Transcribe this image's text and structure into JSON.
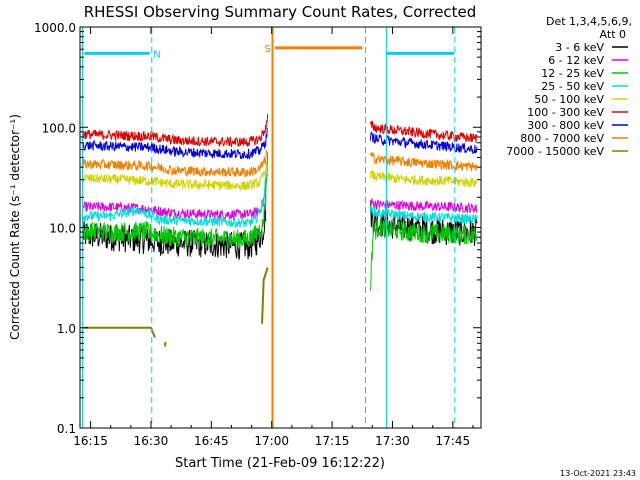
{
  "chart_data": {
    "type": "line",
    "title": "RHESSI Observing Summary Count Rates, Corrected",
    "xlabel": "Start Time (21-Feb-09 16:12:22)",
    "ylabel": "Corrected Count Rate (s⁻¹ detector⁻¹)",
    "y_scale": "log",
    "ylim": [
      0.1,
      1000
    ],
    "xlim_minutes": [
      12.37,
      112
    ],
    "x_ticks": [
      {
        "m": 15,
        "label": "16:15"
      },
      {
        "m": 30,
        "label": "16:30"
      },
      {
        "m": 45,
        "label": "16:45"
      },
      {
        "m": 60,
        "label": "17:00"
      },
      {
        "m": 75,
        "label": "17:15"
      },
      {
        "m": 90,
        "label": "17:30"
      },
      {
        "m": 105,
        "label": "17:45"
      }
    ],
    "y_ticks": [
      {
        "v": 1000,
        "label": "1000.0"
      },
      {
        "v": 100,
        "label": "100.0"
      },
      {
        "v": 10,
        "label": "10.0"
      },
      {
        "v": 1,
        "label": "1.0"
      },
      {
        "v": 0.1,
        "label": "0.1"
      }
    ],
    "legend": {
      "header1": "Det 1,3,4,5,6,9,",
      "header2": "Att 0",
      "position": "right"
    },
    "gap_minutes": [
      60.5,
      83.5
    ],
    "series": [
      {
        "name": "3 - 6 keV",
        "color": "#000000",
        "segments": [
          [
            [
              13,
              8.5
            ],
            [
              20,
              8.0
            ],
            [
              28,
              7.5
            ],
            [
              35,
              7.0
            ],
            [
              45,
              6.8
            ],
            [
              54,
              6.5
            ],
            [
              56,
              7.0
            ],
            [
              57.8,
              9
            ],
            [
              58.5,
              15
            ]
          ],
          [
            [
              84.5,
              14
            ],
            [
              86,
              11
            ],
            [
              94,
              10
            ],
            [
              104,
              9.0
            ],
            [
              111,
              9.0
            ]
          ]
        ]
      },
      {
        "name": "6 - 12 keV",
        "color": "#e000e0",
        "segments": [
          [
            [
              13,
              16
            ],
            [
              20,
              16
            ],
            [
              28,
              15.5
            ],
            [
              35,
              14
            ],
            [
              45,
              13.5
            ],
            [
              54,
              13.5
            ],
            [
              57,
              14.5
            ],
            [
              58.2,
              20
            ],
            [
              58.7,
              30
            ]
          ],
          [
            [
              84.5,
              18
            ],
            [
              86,
              17
            ],
            [
              94,
              16.5
            ],
            [
              104,
              16
            ],
            [
              111,
              15.5
            ]
          ]
        ]
      },
      {
        "name": "12 - 25 keV",
        "color": "#00c800",
        "segments": [
          [
            [
              13,
              9.2
            ],
            [
              20,
              9.0
            ],
            [
              28,
              9.2
            ],
            [
              35,
              8.0
            ],
            [
              45,
              7.8
            ],
            [
              54,
              7.6
            ],
            [
              56,
              8.5
            ],
            [
              57.8,
              10.5
            ],
            [
              58.5,
              20
            ],
            [
              59,
              50
            ]
          ],
          [
            [
              84.5,
              2.5
            ],
            [
              85.2,
              9
            ],
            [
              86.5,
              10
            ],
            [
              94,
              9.0
            ],
            [
              104,
              8.6
            ],
            [
              111,
              8.4
            ]
          ]
        ]
      },
      {
        "name": "25 - 50 keV",
        "color": "#00dcdc",
        "segments": [
          [
            [
              13,
              13
            ],
            [
              20,
              13
            ],
            [
              27,
              15
            ],
            [
              32,
              12
            ],
            [
              45,
              11.5
            ],
            [
              54,
              11
            ],
            [
              56,
              12
            ],
            [
              58,
              18
            ],
            [
              58.6,
              35
            ]
          ],
          [
            [
              84.5,
              15
            ],
            [
              86,
              14
            ],
            [
              94,
              13
            ],
            [
              104,
              12.5
            ],
            [
              111,
              12
            ]
          ]
        ]
      },
      {
        "name": "50 - 100 keV",
        "color": "#d2d200",
        "segments": [
          [
            [
              13,
              31
            ],
            [
              22,
              30
            ],
            [
              30,
              29
            ],
            [
              36,
              27
            ],
            [
              45,
              26.5
            ],
            [
              54,
              26
            ],
            [
              57,
              28
            ],
            [
              58.4,
              36
            ],
            [
              58.8,
              45
            ]
          ],
          [
            [
              84.5,
              34
            ],
            [
              86,
              32
            ],
            [
              94,
              30
            ],
            [
              104,
              29
            ],
            [
              111,
              28
            ]
          ]
        ]
      },
      {
        "name": "100 - 300 keV",
        "color": "#e00000",
        "segments": [
          [
            [
              13,
              85
            ],
            [
              22,
              83
            ],
            [
              30,
              81
            ],
            [
              36,
              74
            ],
            [
              45,
              72
            ],
            [
              54,
              71
            ],
            [
              57,
              76
            ],
            [
              58.6,
              100
            ],
            [
              59,
              125
            ]
          ],
          [
            [
              84.5,
              105
            ],
            [
              86,
              98
            ],
            [
              94,
              90
            ],
            [
              104,
              82
            ],
            [
              111,
              77
            ]
          ]
        ]
      },
      {
        "name": "300 - 800 keV",
        "color": "#0000dc",
        "segments": [
          [
            [
              13,
              66
            ],
            [
              22,
              64
            ],
            [
              30,
              63
            ],
            [
              36,
              57
            ],
            [
              45,
              55
            ],
            [
              54,
              54
            ],
            [
              57,
              58
            ],
            [
              58.5,
              72
            ],
            [
              58.9,
              90
            ]
          ],
          [
            [
              84.5,
              82
            ],
            [
              86,
              76
            ],
            [
              94,
              70
            ],
            [
              104,
              64
            ],
            [
              111,
              60
            ]
          ]
        ]
      },
      {
        "name": "800 - 7000 keV",
        "color": "#f08000",
        "segments": [
          [
            [
              13,
              43
            ],
            [
              22,
              42
            ],
            [
              30,
              41
            ],
            [
              36,
              37
            ],
            [
              45,
              36
            ],
            [
              54,
              35.5
            ],
            [
              57,
              38
            ],
            [
              58.4,
              47
            ],
            [
              58.8,
              58
            ]
          ],
          [
            [
              84.5,
              52
            ],
            [
              86,
              48
            ],
            [
              94,
              45
            ],
            [
              104,
              42
            ],
            [
              111,
              40
            ]
          ]
        ]
      },
      {
        "name": "7000 - 15000 keV",
        "color": "#808000",
        "segments": [
          [
            [
              13,
              1.0
            ],
            [
              30,
              1.0
            ],
            [
              31,
              0.8
            ]
          ],
          [
            [
              33.5,
              0.65
            ],
            [
              33.6,
              0.72
            ]
          ],
          [
            [
              57.6,
              1.1
            ],
            [
              58,
              3.0
            ],
            [
              59,
              4.0
            ]
          ]
        ]
      }
    ],
    "annotations": [
      {
        "kind": "N",
        "label": "N",
        "color": "#00d0e8",
        "line": [
          [
            13.5,
            545
          ],
          [
            29.7,
            545
          ]
        ],
        "vlines": [
          13,
          30.2
        ],
        "label_at": 31.5
      },
      {
        "kind": "S",
        "label": "S",
        "color": "#f08000",
        "line": [
          [
            60.8,
            620
          ],
          [
            82.5,
            620
          ]
        ],
        "vlines": [
          60.2,
          83.3
        ],
        "label_at": 59.0
      },
      {
        "kind": "N2",
        "label": "",
        "color": "#00d0e8",
        "line": [
          [
            88.5,
            545
          ],
          [
            105.3,
            545
          ]
        ],
        "vlines": [
          88.5,
          105.5
        ],
        "label_at": 0
      }
    ],
    "footer_date": "13-Oct-2021 23:43"
  }
}
